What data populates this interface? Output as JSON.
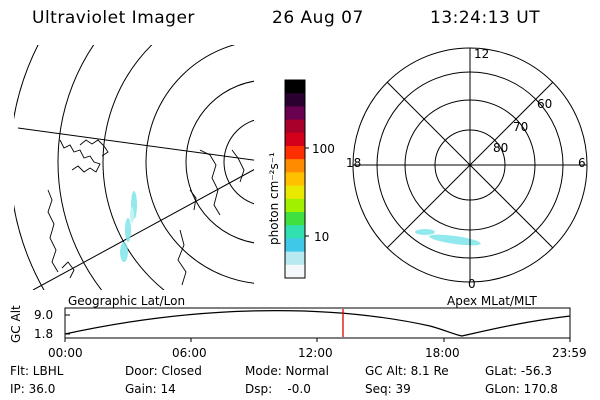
{
  "header": {
    "instrument": "Ultraviolet Imager",
    "date": "26 Aug 07",
    "time": "13:24:13 UT"
  },
  "geographic_panel": {
    "label": "Geographic Lat/Lon"
  },
  "colorbar": {
    "label": "photon cm⁻²s⁻¹",
    "tick_100": "100",
    "tick_10": "10",
    "colors": [
      "#000000",
      "#2a0030",
      "#6a0050",
      "#a8002a",
      "#d4001a",
      "#ff3000",
      "#ff8c00",
      "#ffc000",
      "#e8e800",
      "#a0f000",
      "#40e040",
      "#30e0b0",
      "#40c8e8",
      "#b8e8f0",
      "#f4f8fa"
    ]
  },
  "polar_panel": {
    "label": "Apex MLat/MLT",
    "mlt_12": "12",
    "mlt_18": "18",
    "mlt_6": "6",
    "mlt_0": "0",
    "lat_60": "60",
    "lat_70": "70",
    "lat_80": "80"
  },
  "altitude_plot": {
    "ylabel": "GC Alt",
    "y_top": "9.0",
    "y_bottom": "1.8",
    "x_ticks": [
      "00:00",
      "06:00",
      "12:00",
      "18:00",
      "23:59"
    ],
    "current_time_marker_color": "#e00000"
  },
  "footer": {
    "flt": "Flt: LBHL",
    "ip": "IP: 36.0",
    "door": "Door: Closed",
    "gain": "Gain: 14",
    "mode": "Mode: Normal",
    "dsp": "Dsp:    -0.0",
    "gc_alt": "GC Alt: 8.1 Re",
    "seq": "Seq: 39",
    "glat": "GLat: -56.3",
    "glon": "GLon: 170.8"
  }
}
